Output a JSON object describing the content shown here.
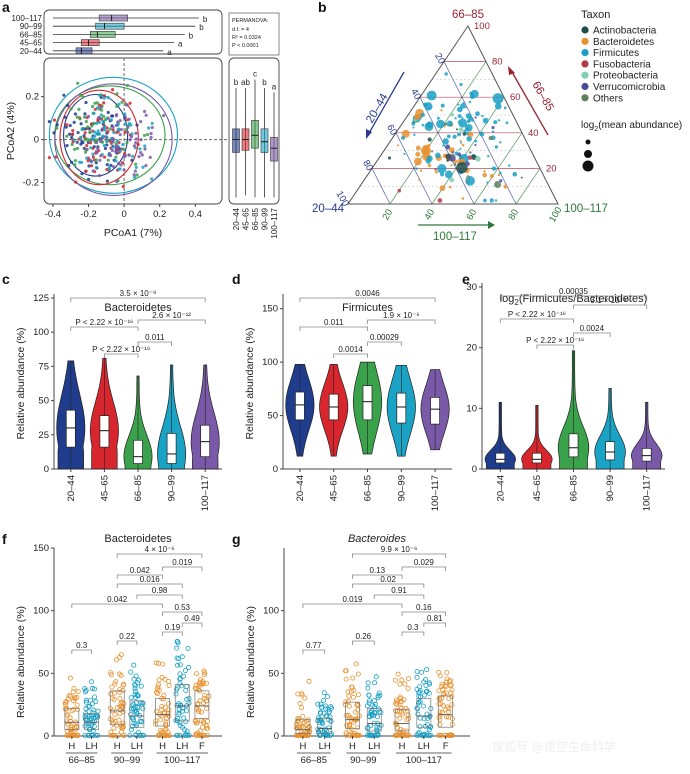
{
  "panels": {
    "a": "a",
    "b": "b",
    "c": "c",
    "d": "d",
    "e": "e",
    "f": "f",
    "g": "g"
  },
  "colors": {
    "age_groups": [
      "#1f3d8c",
      "#d7262d",
      "#3aa24a",
      "#1aa3c4",
      "#7a5aa8"
    ],
    "fill_groups": [
      "#e8912f",
      "#1ba0c4"
    ]
  },
  "watermark": "搜狐号 @悟空生命科学",
  "chart_data": [
    {
      "panel": "a",
      "type": "scatter",
      "title": "",
      "xlabel": "PCoA1 (7%)",
      "ylabel": "PCoA2 (4%)",
      "xlim": [
        -0.45,
        0.55
      ],
      "ylim": [
        -0.3,
        0.38
      ],
      "xticks": [
        "-0.4",
        "-0.2",
        "0",
        "0.2",
        "0.4"
      ],
      "yticks": [
        "-0.2",
        "0",
        "0.2"
      ],
      "groups": [
        "100–117",
        "90–99",
        "66–85",
        "45–65",
        "20–44"
      ],
      "top_box": {
        "axis": "PCoA1",
        "order": [
          "100–117",
          "90–99",
          "66–85",
          "45–65",
          "20–44"
        ],
        "letters": [
          "b",
          "b",
          "b",
          "a",
          "a"
        ],
        "q1": [
          -0.14,
          -0.16,
          -0.19,
          -0.24,
          -0.27
        ],
        "median": [
          -0.07,
          -0.11,
          -0.15,
          -0.2,
          -0.24
        ],
        "q3": [
          0.02,
          0.0,
          -0.05,
          -0.14,
          -0.18
        ],
        "whisker_low": [
          -0.4,
          -0.4,
          -0.4,
          -0.4,
          -0.4
        ],
        "whisker_high": [
          0.42,
          0.4,
          0.34,
          0.28,
          0.22
        ]
      },
      "permanova": {
        "header": "PERMANOVA:",
        "lines": [
          "d.f. = 4",
          "R² = 0.0324",
          "P < 0.0001"
        ]
      },
      "side_box": {
        "axis": "PCoA2",
        "order": [
          "20–44",
          "45–65",
          "66–85",
          "90–99",
          "100–117"
        ],
        "letters": [
          "b",
          "ab",
          "c",
          "b",
          "a"
        ],
        "q1": [
          -0.06,
          -0.05,
          -0.04,
          -0.06,
          -0.1
        ],
        "median": [
          0.0,
          0.0,
          0.02,
          -0.01,
          -0.04
        ],
        "q3": [
          0.05,
          0.05,
          0.09,
          0.05,
          0.01
        ],
        "whisker_low": [
          -0.27,
          -0.26,
          -0.27,
          -0.27,
          -0.27
        ],
        "whisker_high": [
          0.24,
          0.24,
          0.28,
          0.24,
          0.22
        ]
      }
    },
    {
      "panel": "b",
      "type": "scatter",
      "subtype": "ternary",
      "title": "",
      "legend_title": "Taxon",
      "legend_entries": [
        {
          "name": "Actinobacteria",
          "color": "#1f4e4a"
        },
        {
          "name": "Bacteroidetes",
          "color": "#e8912f"
        },
        {
          "name": "Firmicutes",
          "color": "#1ba0c4"
        },
        {
          "name": "Fusobacteria",
          "color": "#b5374a"
        },
        {
          "name": "Proteobacteria",
          "color": "#7fcfb0"
        },
        {
          "name": "Verrucomicrobia",
          "color": "#4a4a9a"
        },
        {
          "name": "Others",
          "color": "#5f7f5a"
        }
      ],
      "size_legend_prefix": "log",
      "size_legend_sub": "2",
      "size_legend_suffix": "(mean abundance)",
      "corners": {
        "top": "66–85",
        "left": "20–44",
        "right": "100–117"
      },
      "axis_names": {
        "left": "20–44",
        "right": "66–85",
        "bottom": "100–117"
      },
      "tick_values": [
        "20",
        "40",
        "60",
        "80",
        "100"
      ],
      "tick_colors": {
        "top": "#9b2331",
        "left": "#2a3a8f",
        "right": "#2e7a3a"
      }
    },
    {
      "panel": "c",
      "type": "violin",
      "title": "Bacteroidetes",
      "ylabel": "Relative abundance (%)",
      "categories": [
        "20–44",
        "45–65",
        "66–85",
        "90–99",
        "100–117"
      ],
      "ylim": [
        0,
        125
      ],
      "yticks": [
        "0",
        "25",
        "50",
        "75",
        "100",
        "125"
      ],
      "q1": [
        16,
        16,
        4,
        4,
        9
      ],
      "median": [
        30,
        28,
        9,
        11,
        20
      ],
      "q3": [
        43,
        39,
        21,
        26,
        32
      ],
      "max": [
        79,
        81,
        68,
        76,
        76
      ],
      "comparisons": [
        {
          "between": [
            "20–44",
            "100–117"
          ],
          "label": "3.5 × 10⁻⁹"
        },
        {
          "between": [
            "66–85",
            "100–117"
          ],
          "label": "2.6 × 10⁻¹²"
        },
        {
          "between": [
            "20–44",
            "66–85"
          ],
          "label": "P < 2.22 × 10⁻¹⁶"
        },
        {
          "between": [
            "66–85",
            "90–99"
          ],
          "label": "0.011"
        },
        {
          "between": [
            "45–65",
            "66–85"
          ],
          "label": "P < 2.22 × 10⁻¹⁶"
        }
      ]
    },
    {
      "panel": "d",
      "type": "violin",
      "title": "Firmicutes",
      "ylabel": "Relative abundance (%)",
      "categories": [
        "20–44",
        "45–65",
        "66–85",
        "90–99",
        "100–117"
      ],
      "ylim": [
        0,
        160
      ],
      "yticks": [
        "0",
        "50",
        "100",
        "150"
      ],
      "q1": [
        46,
        46,
        46,
        43,
        42
      ],
      "median": [
        60,
        58,
        63,
        58,
        56
      ],
      "q3": [
        72,
        70,
        78,
        71,
        67
      ],
      "min": [
        12,
        12,
        14,
        12,
        18
      ],
      "max": [
        98,
        98,
        100,
        97,
        93
      ],
      "comparisons": [
        {
          "between": [
            "20–44",
            "100–117"
          ],
          "label": "0.0046"
        },
        {
          "between": [
            "66–85",
            "100–117"
          ],
          "label": "1.9 × 10⁻⁶"
        },
        {
          "between": [
            "20–44",
            "66–85"
          ],
          "label": "0.011"
        },
        {
          "between": [
            "66–85",
            "90–99"
          ],
          "label": "0.00029"
        },
        {
          "between": [
            "45–65",
            "66–85"
          ],
          "label": "0.0014"
        }
      ]
    },
    {
      "panel": "e",
      "type": "violin",
      "title_prefix": "log",
      "title_sub": "2",
      "title_suffix": "(Firmicutes/Bacteroidetes)",
      "ylabel": "",
      "categories": [
        "20–44",
        "45–65",
        "66–85",
        "90–99",
        "100–117"
      ],
      "ylim": [
        0,
        30
      ],
      "yticks": [
        "0",
        "10",
        "20",
        "30"
      ],
      "q1": [
        1.0,
        1.0,
        2.0,
        1.5,
        1.3
      ],
      "median": [
        1.6,
        1.6,
        3.5,
        2.8,
        2.2
      ],
      "q3": [
        2.6,
        2.6,
        5.8,
        4.5,
        3.4
      ],
      "max": [
        11,
        10.5,
        19.5,
        13.3,
        11
      ],
      "comparisons": [
        {
          "between": [
            "20–44",
            "100–117"
          ],
          "label": "0.00035"
        },
        {
          "between": [
            "66–85",
            "100–117"
          ],
          "label": "3.1 × 10⁻¹⁵"
        },
        {
          "between": [
            "20–44",
            "66–85"
          ],
          "label": "P < 2.22 × 10⁻¹⁶"
        },
        {
          "between": [
            "66–85",
            "90–99"
          ],
          "label": "0.0024"
        },
        {
          "between": [
            "45–65",
            "66–85"
          ],
          "label": "P < 2.22 × 10⁻¹⁶"
        }
      ]
    },
    {
      "panel": "f",
      "type": "scatter",
      "subtype": "strip_box",
      "title": "Bacteroidetes",
      "ylabel": "Relative abundance (%)",
      "categories": [
        "H",
        "LH",
        "H",
        "LH",
        "H",
        "LH",
        "F"
      ],
      "group_labels": [
        "66–85",
        "90–99",
        "100–117"
      ],
      "ylim": [
        0,
        150
      ],
      "yticks": [
        "0",
        "50",
        "100",
        "150"
      ],
      "q1": [
        5,
        5,
        9,
        7,
        8,
        12,
        14
      ],
      "median": [
        11,
        11,
        20,
        16,
        17,
        24,
        24
      ],
      "q3": [
        22,
        18,
        36,
        28,
        30,
        41,
        36
      ],
      "max": [
        52,
        44,
        76,
        63,
        60,
        77,
        56
      ],
      "comparisons": [
        {
          "label": "4 × 10⁻⁶"
        },
        {
          "label": "0.019"
        },
        {
          "label": "0.042"
        },
        {
          "label": "0.016"
        },
        {
          "label": "0.98"
        },
        {
          "label": "0.042"
        },
        {
          "label": "0.53"
        },
        {
          "label": "0.49"
        },
        {
          "label": "0.19"
        },
        {
          "label": "0.3"
        },
        {
          "label": "0.22"
        }
      ]
    },
    {
      "panel": "g",
      "type": "scatter",
      "subtype": "strip_box",
      "title": "Bacteroides",
      "ylabel": "Relative abundance (%)",
      "categories": [
        "H",
        "LH",
        "H",
        "LH",
        "H",
        "LH",
        "F"
      ],
      "group_labels": [
        "66–85",
        "90–99",
        "100–117"
      ],
      "ylim": [
        0,
        150
      ],
      "yticks": [
        "0",
        "50",
        "100"
      ],
      "q1": [
        2,
        2,
        6,
        4,
        4,
        7,
        7
      ],
      "median": [
        5,
        6,
        13,
        10,
        10,
        16,
        17
      ],
      "q3": [
        13,
        14,
        27,
        22,
        21,
        30,
        32
      ],
      "max": [
        45,
        37,
        60,
        55,
        50,
        53,
        55
      ],
      "comparisons": [
        {
          "label": "9.9 × 10⁻⁶"
        },
        {
          "label": "0.029"
        },
        {
          "label": "0.13"
        },
        {
          "label": "0.02"
        },
        {
          "label": "0.91"
        },
        {
          "label": "0.019"
        },
        {
          "label": "0.16"
        },
        {
          "label": "0.81"
        },
        {
          "label": "0.3"
        },
        {
          "label": "0.77"
        },
        {
          "label": "0.26"
        }
      ]
    }
  ]
}
